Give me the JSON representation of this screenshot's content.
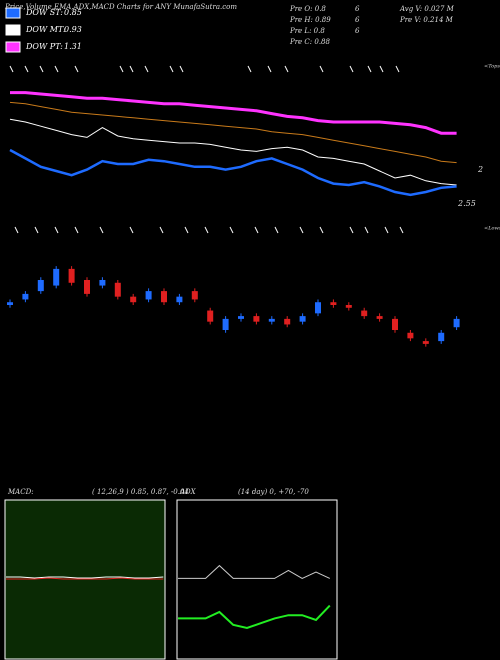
{
  "chart_data": [
    {
      "type": "price",
      "title": "Price,Volume,EMA,ADX,MACD Charts for ANY MunafaSutra.com",
      "series": [
        {
          "name": "DOW ST:",
          "last": 0.85,
          "color": "#1e6bff",
          "values": [
            50,
            44,
            38,
            35,
            32,
            36,
            42,
            40,
            40,
            43,
            42,
            40,
            38,
            38,
            36,
            38,
            42,
            44,
            40,
            36,
            30,
            26,
            25,
            27,
            24,
            20,
            18,
            20,
            23,
            24
          ]
        },
        {
          "name": "DOW MT:",
          "last": 0.93,
          "color": "#ffffff",
          "values": [
            72,
            70,
            67,
            64,
            61,
            59,
            66,
            60,
            58,
            57,
            56,
            55,
            55,
            54,
            52,
            50,
            49,
            51,
            52,
            50,
            45,
            44,
            42,
            40,
            35,
            30,
            32,
            28,
            26,
            25
          ]
        },
        {
          "name": "DOW PT:",
          "last": 1.31,
          "color": "#ff33ff",
          "values": [
            91,
            91,
            90,
            89,
            88,
            87,
            87,
            86,
            85,
            84,
            83,
            83,
            82,
            81,
            80,
            79,
            78,
            76,
            74,
            73,
            71,
            70,
            70,
            70,
            70,
            69,
            68,
            66,
            62,
            62
          ]
        }
      ],
      "ema": {
        "color": "#c87a1a",
        "values": [
          84,
          83,
          81,
          79,
          77,
          76,
          75,
          74,
          73,
          72,
          71,
          70,
          69,
          68,
          67,
          66,
          65,
          63,
          62,
          61,
          59,
          57,
          55,
          53,
          51,
          49,
          47,
          45,
          42,
          41
        ]
      },
      "ylim": [
        0,
        100
      ],
      "stats": [
        "Pre O: 0.8",
        "6",
        "Avg V: 0.027 M",
        "Pre H: 0.89",
        "6",
        "Pre V: 0.214 M",
        "Pre L: 0.8",
        "6",
        "Pre C: 0.88"
      ],
      "right_labels": [
        "<Tops",
        "2",
        "2.55",
        "<Lows"
      ]
    },
    {
      "type": "candlestick",
      "up_color": "#1e6bff",
      "down_color": "#e02020",
      "ylim": [
        0.72,
        1.08
      ],
      "open": [
        0.9,
        0.92,
        0.95,
        0.97,
        1.03,
        0.99,
        0.97,
        0.98,
        0.93,
        0.92,
        0.95,
        0.91,
        0.95,
        0.88,
        0.81,
        0.85,
        0.86,
        0.84,
        0.85,
        0.84,
        0.87,
        0.91,
        0.9,
        0.88,
        0.86,
        0.85,
        0.8,
        0.77,
        0.77,
        0.82
      ],
      "close": [
        0.91,
        0.94,
        0.99,
        1.03,
        0.98,
        0.94,
        0.99,
        0.93,
        0.91,
        0.95,
        0.91,
        0.93,
        0.92,
        0.84,
        0.85,
        0.86,
        0.84,
        0.85,
        0.83,
        0.86,
        0.91,
        0.9,
        0.89,
        0.86,
        0.85,
        0.81,
        0.78,
        0.76,
        0.8,
        0.85
      ],
      "high": [
        0.92,
        0.95,
        1.0,
        1.04,
        1.04,
        1.0,
        1.0,
        0.99,
        0.94,
        0.96,
        0.96,
        0.94,
        0.96,
        0.89,
        0.86,
        0.87,
        0.87,
        0.86,
        0.86,
        0.87,
        0.92,
        0.92,
        0.91,
        0.89,
        0.87,
        0.86,
        0.81,
        0.78,
        0.81,
        0.86
      ],
      "low": [
        0.89,
        0.91,
        0.94,
        0.96,
        0.97,
        0.93,
        0.96,
        0.92,
        0.9,
        0.91,
        0.9,
        0.9,
        0.91,
        0.83,
        0.8,
        0.84,
        0.83,
        0.83,
        0.82,
        0.83,
        0.86,
        0.89,
        0.88,
        0.85,
        0.84,
        0.8,
        0.77,
        0.75,
        0.76,
        0.81
      ]
    },
    {
      "type": "macd",
      "title": "MACD:",
      "params": "( 12,26,9 ) 0.85, 0.87, -0.04",
      "ylim": [
        -8,
        8
      ],
      "series": [
        {
          "color": "#ffffff",
          "values": [
            0.3,
            0.3,
            0.2,
            0.3,
            0.3,
            0.2,
            0.2,
            0.3,
            0.3,
            0.2,
            0.2,
            0.3
          ]
        },
        {
          "color": "#e02020",
          "values": [
            0.1,
            0.1,
            0.1,
            0.2,
            0.1,
            0.1,
            0.1,
            0.1,
            0.2,
            0.1,
            0.1,
            0.1
          ]
        }
      ]
    },
    {
      "type": "adx",
      "title": "ADX",
      "params": "(14 day) 0, +70, -70",
      "ylim": [
        0,
        100
      ],
      "series": [
        {
          "color": "#cccccc",
          "values": [
            51,
            51,
            51,
            59,
            51,
            51,
            51,
            51,
            56,
            51,
            55,
            51
          ]
        },
        {
          "color": "#22ee22",
          "values": [
            26,
            26,
            26,
            30,
            22,
            20,
            23,
            26,
            28,
            28,
            25,
            34
          ]
        }
      ]
    }
  ]
}
